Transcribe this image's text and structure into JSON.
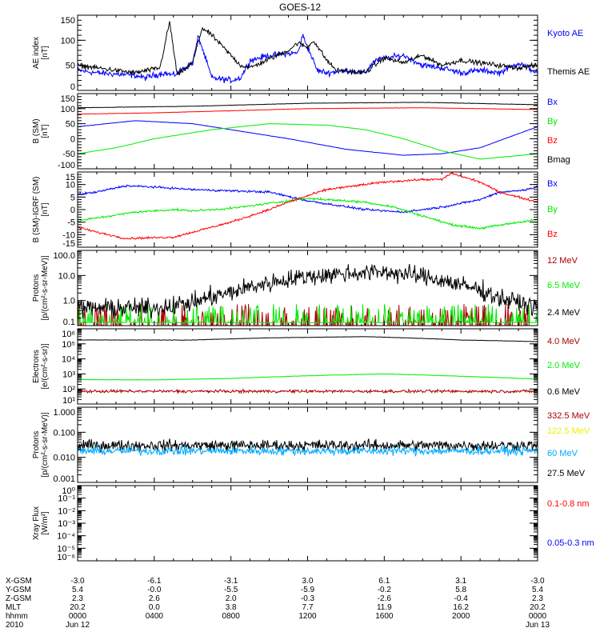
{
  "title": "GOES-12",
  "ephemeris": {
    "labels": [
      "X-GSM",
      "Y-GSM",
      "Z-GSM",
      "MLT",
      "hhmm",
      "2010"
    ],
    "columns": [
      [
        "-3.0",
        "5.4",
        "2.3",
        "20.2",
        "0000",
        "Jun 12"
      ],
      [
        "-6.1",
        "-0.0",
        "2.6",
        "0.0",
        "0400",
        ""
      ],
      [
        "-3.1",
        "-5.5",
        "2.0",
        "3.8",
        "0800",
        ""
      ],
      [
        "3.0",
        "-5.9",
        "-0.3",
        "7.7",
        "1200",
        ""
      ],
      [
        "6.1",
        "-0.2",
        "-2.6",
        "11.9",
        "1600",
        ""
      ],
      [
        "3.1",
        "5.8",
        "-0.4",
        "16.2",
        "2000",
        ""
      ],
      [
        "-3.0",
        "5.4",
        "2.3",
        "20.2",
        "0000",
        "Jun 13"
      ]
    ]
  },
  "chart_data": [
    {
      "type": "line",
      "ylabel": [
        "AE index",
        "[nT]"
      ],
      "scale": "linear",
      "ylim": [
        0,
        150
      ],
      "yticks": [
        0,
        50,
        100,
        150
      ],
      "yticklabels": [
        "0",
        "50",
        "100",
        "150"
      ],
      "xlim_hours": [
        0,
        24
      ],
      "series": [
        {
          "name": "Kyoto AE",
          "color": "#0000ff",
          "noise": 5,
          "knots": [
            [
              0,
              40
            ],
            [
              1,
              35
            ],
            [
              3,
              30
            ],
            [
              3.5,
              25
            ],
            [
              4.5,
              35
            ],
            [
              5,
              30
            ],
            [
              6,
              55
            ],
            [
              6.3,
              108
            ],
            [
              7,
              25
            ],
            [
              8,
              20
            ],
            [
              8.5,
              25
            ],
            [
              9,
              60
            ],
            [
              10,
              70
            ],
            [
              11.5,
              75
            ],
            [
              11.75,
              110
            ],
            [
              12.5,
              40
            ],
            [
              13,
              35
            ],
            [
              14,
              40
            ],
            [
              15,
              35
            ],
            [
              15.5,
              60
            ],
            [
              17,
              70
            ],
            [
              18,
              50
            ],
            [
              19,
              45
            ],
            [
              20,
              35
            ],
            [
              21,
              40
            ],
            [
              22,
              35
            ],
            [
              23,
              55
            ],
            [
              24,
              35
            ]
          ]
        },
        {
          "name": "Themis AE",
          "color": "#000000",
          "noise": 4,
          "knots": [
            [
              0,
              50
            ],
            [
              2,
              40
            ],
            [
              3,
              35
            ],
            [
              4.3,
              45
            ],
            [
              4.8,
              137
            ],
            [
              5.2,
              30
            ],
            [
              6,
              55
            ],
            [
              6.5,
              125
            ],
            [
              7,
              110
            ],
            [
              8.5,
              50
            ],
            [
              9,
              45
            ],
            [
              11,
              80
            ],
            [
              11.5,
              95
            ],
            [
              12,
              85
            ],
            [
              12.3,
              100
            ],
            [
              13,
              60
            ],
            [
              13.5,
              40
            ],
            [
              15,
              35
            ],
            [
              15.5,
              50
            ],
            [
              16,
              65
            ],
            [
              17,
              55
            ],
            [
              18,
              70
            ],
            [
              19,
              50
            ],
            [
              20,
              60
            ],
            [
              21,
              55
            ],
            [
              22,
              50
            ],
            [
              23,
              45
            ],
            [
              24,
              50
            ]
          ]
        }
      ]
    },
    {
      "type": "line",
      "ylabel": [
        "B (SM)",
        "[nT]"
      ],
      "scale": "linear",
      "ylim": [
        -100,
        150
      ],
      "yticks": [
        -100,
        -50,
        0,
        50,
        100,
        150
      ],
      "yticklabels": [
        "-100",
        "-50",
        "0",
        "50",
        "100",
        "150"
      ],
      "series": [
        {
          "name": "Bx",
          "color": "#0000ff",
          "noise": 0.5,
          "knots": [
            [
              0,
              40
            ],
            [
              3,
              60
            ],
            [
              6,
              50
            ],
            [
              8,
              30
            ],
            [
              11,
              0
            ],
            [
              14,
              -35
            ],
            [
              17,
              -55
            ],
            [
              19,
              -50
            ],
            [
              21,
              -30
            ],
            [
              24,
              40
            ]
          ]
        },
        {
          "name": "By",
          "color": "#00ee00",
          "noise": 0.5,
          "knots": [
            [
              0,
              -50
            ],
            [
              2,
              -30
            ],
            [
              4,
              0
            ],
            [
              7,
              30
            ],
            [
              10,
              50
            ],
            [
              13,
              45
            ],
            [
              15,
              30
            ],
            [
              17,
              0
            ],
            [
              19,
              -40
            ],
            [
              21,
              -68
            ],
            [
              24,
              -50
            ]
          ]
        },
        {
          "name": "Bz",
          "color": "#ff0000",
          "noise": 0.5,
          "knots": [
            [
              0,
              82
            ],
            [
              4,
              86
            ],
            [
              8,
              93
            ],
            [
              12,
              100
            ],
            [
              18,
              103
            ],
            [
              24,
              97
            ]
          ]
        },
        {
          "name": "Bmag",
          "color": "#000000",
          "noise": 0.5,
          "knots": [
            [
              0,
              103
            ],
            [
              6,
              108
            ],
            [
              12,
              118
            ],
            [
              18,
              121
            ],
            [
              24,
              113
            ]
          ]
        }
      ]
    },
    {
      "type": "line",
      "ylabel": [
        "B (SM)-IGRF (SM)",
        "[nT]"
      ],
      "scale": "linear",
      "ylim": [
        -15,
        15
      ],
      "yticks": [
        -15,
        -10,
        -5,
        0,
        5,
        10,
        15
      ],
      "yticklabels": [
        "-15",
        "-10",
        "-5",
        "0",
        "5",
        "10",
        "15"
      ],
      "series": [
        {
          "name": "Bx",
          "color": "#0000ff",
          "noise": 0.35,
          "knots": [
            [
              0,
              6
            ],
            [
              1,
              7
            ],
            [
              2.5,
              9.5
            ],
            [
              4,
              9
            ],
            [
              6,
              8
            ],
            [
              8,
              7.5
            ],
            [
              10,
              7
            ],
            [
              12,
              3.5
            ],
            [
              15,
              0
            ],
            [
              17,
              -1
            ],
            [
              19,
              1
            ],
            [
              21,
              4
            ],
            [
              22,
              7
            ],
            [
              23,
              7.5
            ],
            [
              24,
              9
            ]
          ]
        },
        {
          "name": "By",
          "color": "#00ee00",
          "noise": 0.35,
          "knots": [
            [
              0,
              -4.5
            ],
            [
              3,
              -1
            ],
            [
              5,
              0
            ],
            [
              6,
              -0.5
            ],
            [
              8,
              0.5
            ],
            [
              10,
              2.5
            ],
            [
              12,
              4.5
            ],
            [
              15,
              3
            ],
            [
              16.5,
              1
            ],
            [
              18,
              -2.5
            ],
            [
              19.5,
              -6
            ],
            [
              21,
              -7.5
            ],
            [
              23,
              -5
            ],
            [
              24,
              -4
            ]
          ]
        },
        {
          "name": "Bz",
          "color": "#ff0000",
          "noise": 0.35,
          "knots": [
            [
              0,
              -7
            ],
            [
              1,
              -9
            ],
            [
              2.5,
              -11.5
            ],
            [
              5,
              -11
            ],
            [
              6.5,
              -8
            ],
            [
              8,
              -5
            ],
            [
              10,
              0
            ],
            [
              11,
              3
            ],
            [
              13,
              8
            ],
            [
              16,
              11
            ],
            [
              18,
              12
            ],
            [
              19,
              12
            ],
            [
              19.5,
              14.5
            ],
            [
              21,
              11
            ],
            [
              22,
              7
            ],
            [
              24,
              3
            ]
          ]
        }
      ]
    },
    {
      "type": "line",
      "ylabel": [
        "Protons",
        "[p/(cm²-s-sr-MeV)]"
      ],
      "scale": "log",
      "ylim": [
        0.1,
        100
      ],
      "yticks": [
        0.1,
        1,
        10,
        100
      ],
      "yticklabels": [
        "0.1",
        "1.0",
        "10.0",
        "100.0"
      ],
      "series": [
        {
          "name": "12 MeV",
          "color": "#aa0000",
          "noise": 0.35,
          "spiky": true,
          "knots": [
            [
              0,
              0.1
            ],
            [
              24,
              0.1
            ]
          ]
        },
        {
          "name": "6.5 MeV",
          "color": "#00ee00",
          "noise": 0.3,
          "spiky": true,
          "knots": [
            [
              0,
              0.13
            ],
            [
              24,
              0.13
            ]
          ]
        },
        {
          "name": "2.4 MeV",
          "color": "#000000",
          "noise": 0.3,
          "knots": [
            [
              0,
              0.5
            ],
            [
              4,
              0.5
            ],
            [
              6,
              0.8
            ],
            [
              8,
              2
            ],
            [
              10,
              5
            ],
            [
              12,
              9
            ],
            [
              14,
              12
            ],
            [
              16,
              14
            ],
            [
              18,
              9
            ],
            [
              20,
              4
            ],
            [
              22,
              1.2
            ],
            [
              24,
              0.5
            ]
          ]
        }
      ]
    },
    {
      "type": "line",
      "ylabel": [
        "Electrons",
        "[e/(cm²-s-sr)]"
      ],
      "scale": "log",
      "ylim": [
        10,
        1000000
      ],
      "yticks": [
        10,
        100,
        1000,
        10000,
        100000,
        1000000
      ],
      "yticklabels": [
        "10¹",
        "10²",
        "10³",
        "10⁴",
        "10⁵",
        "10⁶"
      ],
      "series": [
        {
          "name": "4.0 MeV",
          "color": "#aa0000",
          "noise": 0.08,
          "knots": [
            [
              0,
              70
            ],
            [
              24,
              70
            ]
          ]
        },
        {
          "name": "2.0 MeV",
          "color": "#00ee00",
          "noise": 0.015,
          "knots": [
            [
              0,
              420
            ],
            [
              4,
              400
            ],
            [
              8,
              500
            ],
            [
              12,
              750
            ],
            [
              16,
              1000
            ],
            [
              20,
              700
            ],
            [
              24,
              450
            ]
          ]
        },
        {
          "name": "0.6 MeV",
          "color": "#000000",
          "noise": 0.01,
          "knots": [
            [
              0,
              180000
            ],
            [
              6,
              180000
            ],
            [
              10,
              250000
            ],
            [
              15,
              300000
            ],
            [
              20,
              180000
            ],
            [
              24,
              140000
            ]
          ]
        }
      ]
    },
    {
      "type": "line",
      "ylabel": [
        "Protons",
        "[p/(cm²-s-sr-MeV)]"
      ],
      "scale": "log",
      "ylim": [
        0.001,
        1
      ],
      "yticks": [
        0.001,
        0.01,
        0.1,
        1
      ],
      "yticklabels": [
        "0.001",
        "0.010",
        "0.100",
        "1.000"
      ],
      "series": [
        {
          "name": "332.5 MeV",
          "color": "#aa0000",
          "knots": [],
          "noise": 0
        },
        {
          "name": "122.5 MeV",
          "color": "#eeee00",
          "knots": [],
          "noise": 0
        },
        {
          "name": "27.5 MeV",
          "color": "#000000",
          "noise": 0.18,
          "knots": [
            [
              0,
              0.03
            ],
            [
              24,
              0.03
            ]
          ]
        },
        {
          "name": "60 MeV",
          "color": "#00aaff",
          "noise": 0.14,
          "knots": [
            [
              0,
              0.018
            ],
            [
              24,
              0.018
            ]
          ]
        }
      ]
    },
    {
      "type": "line",
      "ylabel": [
        "Xray Flux",
        "[W/m²]"
      ],
      "scale": "log",
      "ylim": [
        1e-06,
        1
      ],
      "yticks": [
        1e-06,
        1e-05,
        0.0001,
        0.001,
        0.01,
        0.1,
        1
      ],
      "yticklabels": [
        "10⁻⁶",
        "10⁻⁵",
        "10⁻⁴",
        "10⁻³",
        "10⁻²",
        "10⁻¹",
        "10⁰"
      ],
      "series": [
        {
          "name": "0.1-0.8 nm",
          "color": "#ff0000",
          "knots": [],
          "noise": 0
        },
        {
          "name": "0.05-0.3 nm",
          "color": "#0000ff",
          "knots": [],
          "noise": 0
        }
      ]
    }
  ],
  "legend_order": [
    [
      "Kyoto AE",
      "Themis AE"
    ],
    [
      "Bx",
      "By",
      "Bz",
      "Bmag"
    ],
    [
      "Bx",
      "By",
      "Bz"
    ],
    [
      "12 MeV",
      "6.5 MeV",
      "2.4 MeV"
    ],
    [
      "4.0 MeV",
      "2.0 MeV",
      "0.6 MeV"
    ],
    [
      "332.5 MeV",
      "122.5 MeV",
      "60 MeV",
      "27.5 MeV"
    ],
    [
      "0.1-0.8 nm",
      "0.05-0.3 nm"
    ]
  ]
}
